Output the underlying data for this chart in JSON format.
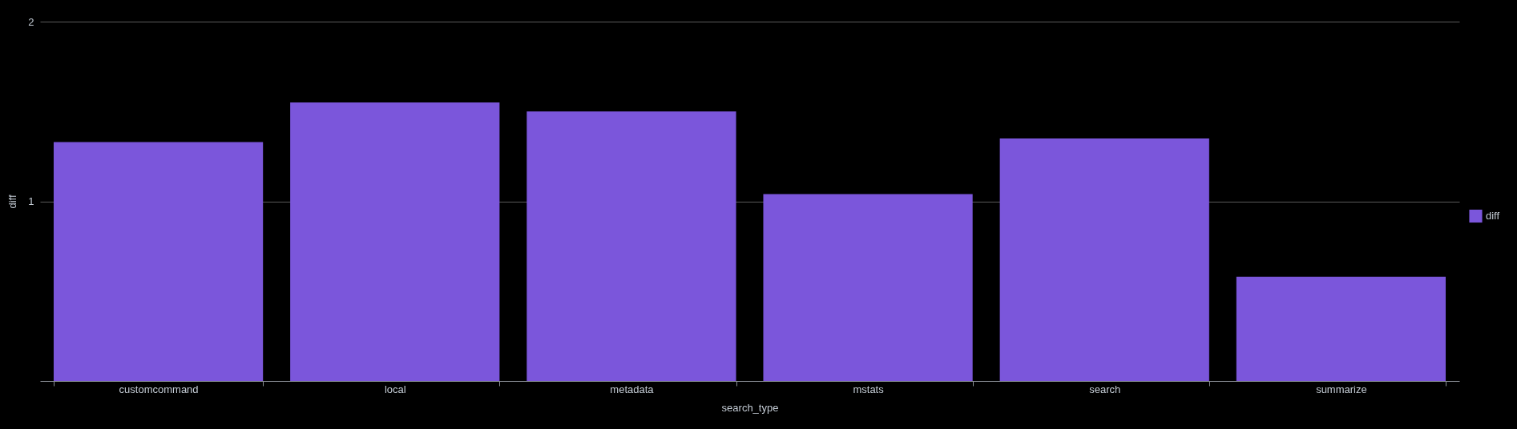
{
  "chart_data": {
    "type": "bar",
    "xlabel": "search_type",
    "ylabel": "diff",
    "categories": [
      "customcommand",
      "local",
      "metadata",
      "mstats",
      "search",
      "summarize"
    ],
    "series": [
      {
        "name": "diff",
        "color": "#7b56db",
        "values": [
          1.33,
          1.55,
          1.5,
          1.04,
          1.35,
          0.58
        ]
      }
    ],
    "ylim": [
      0,
      2
    ],
    "yticks": [
      1,
      2
    ],
    "grid": "y",
    "legend": "right"
  }
}
